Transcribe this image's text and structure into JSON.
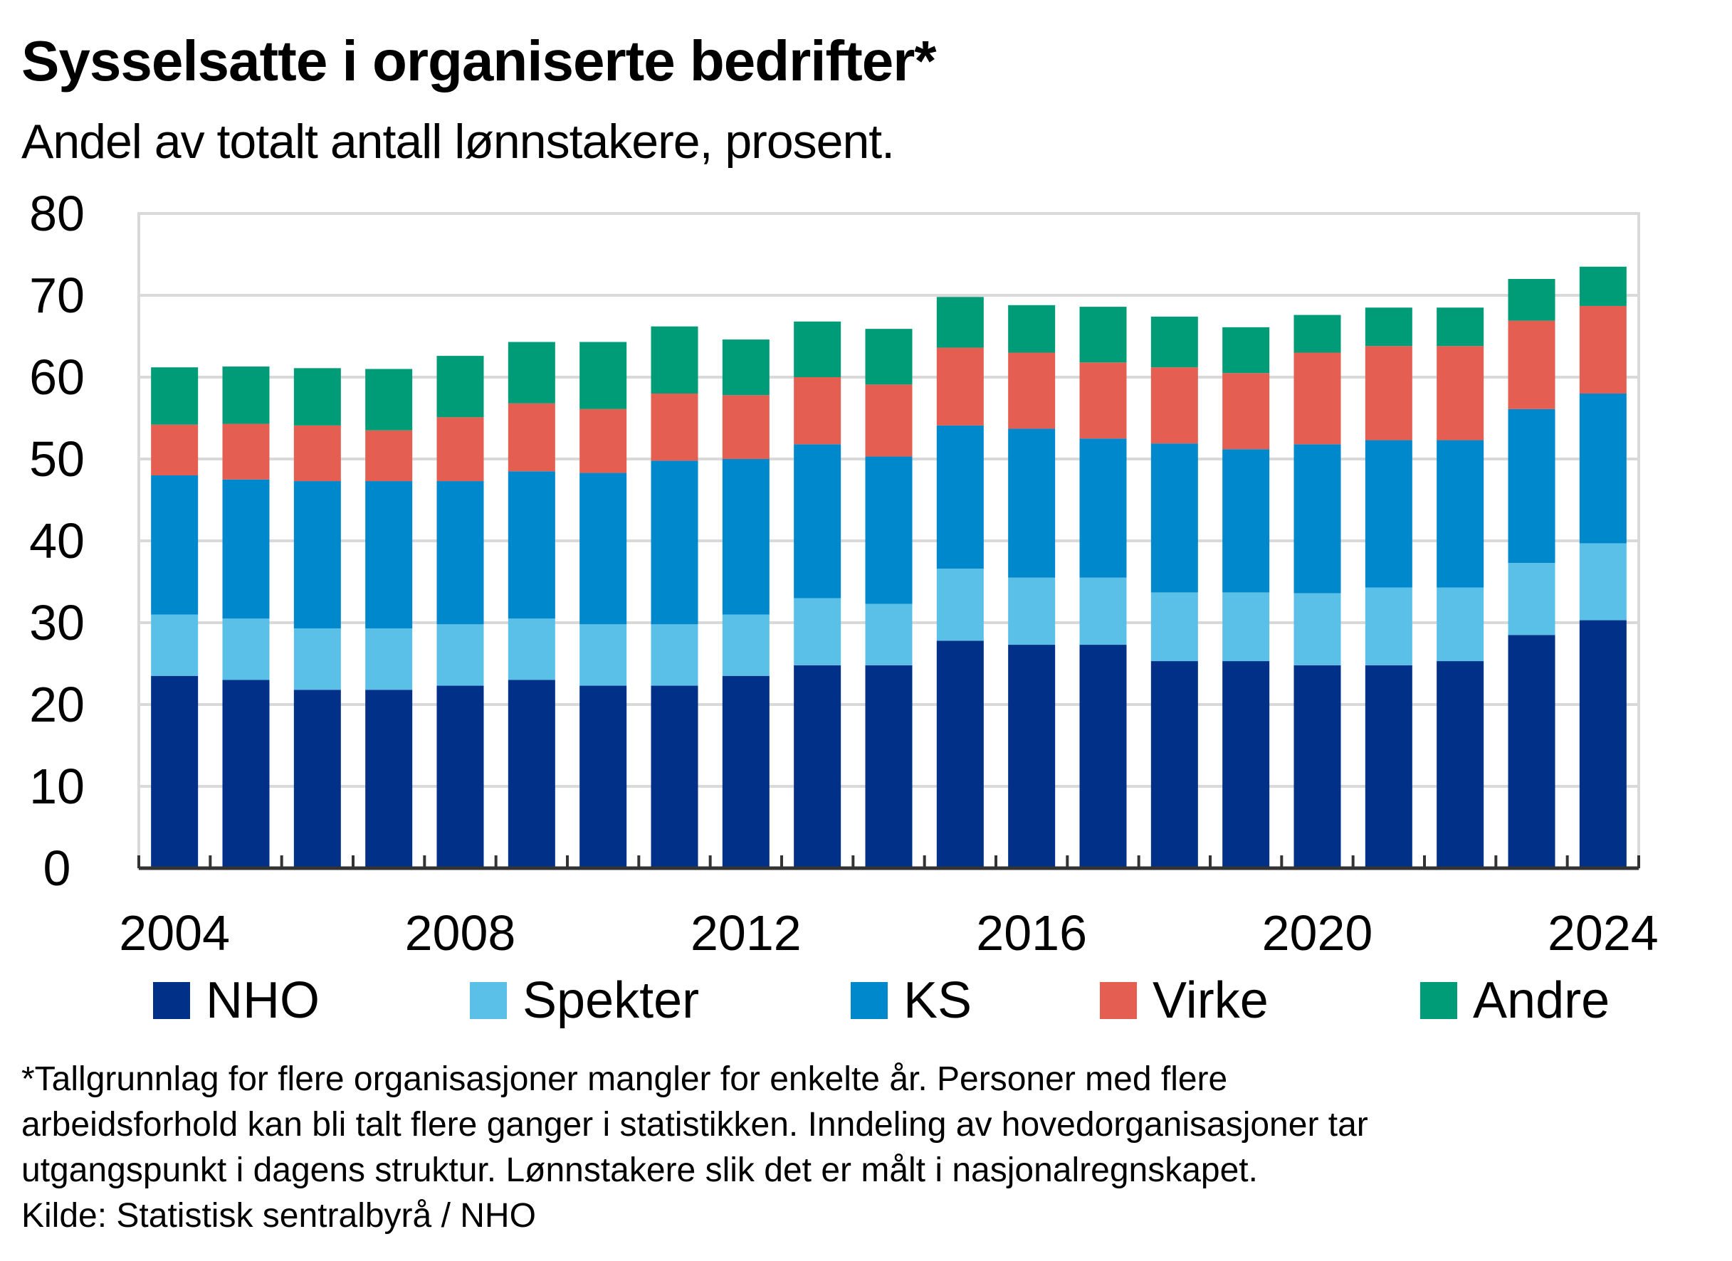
{
  "title": "Sysselsatte  i organiserte  bedrifter*",
  "subtitle": "Andel av totalt antall lønnstakere, prosent.",
  "footnote_lines": [
    "*Tallgrunnlag for flere organisasjoner mangler for enkelte år. Personer med flere",
    "arbeidsforhold kan bli talt flere ganger i statistikken. Inndeling av hovedorganisasjoner tar",
    "utgangspunkt i dagens struktur. Lønnstakere slik det er målt i nasjonalregnskapet.",
    "Kilde: Statistisk sentralbyrå / NHO"
  ],
  "chart_data": {
    "type": "bar",
    "stacked": true,
    "categories": [
      "2004",
      "2005",
      "2006",
      "2007",
      "2008",
      "2009",
      "2010",
      "2011",
      "2012",
      "2013",
      "2014",
      "2015",
      "2016",
      "2017",
      "2018",
      "2019",
      "2020",
      "2021",
      "2022",
      "2023",
      "2024"
    ],
    "x_tick_labels": [
      "2004",
      "2008",
      "2012",
      "2016",
      "2020",
      "2024"
    ],
    "y_ticks": [
      0,
      10,
      20,
      30,
      40,
      50,
      60,
      70,
      80
    ],
    "ylim": [
      0,
      80
    ],
    "grid": true,
    "legend_position": "bottom",
    "series": [
      {
        "name": "NHO",
        "color": "#003087",
        "values": [
          23.5,
          23.0,
          21.8,
          21.8,
          22.3,
          23.0,
          22.3,
          22.3,
          23.5,
          24.8,
          24.8,
          27.8,
          27.3,
          27.3,
          25.3,
          25.3,
          24.8,
          24.8,
          25.3,
          28.5,
          30.3
        ]
      },
      {
        "name": "Spekter",
        "color": "#5bc0e8",
        "values": [
          7.5,
          7.5,
          7.5,
          7.5,
          7.5,
          7.5,
          7.5,
          7.5,
          7.5,
          8.2,
          7.5,
          8.8,
          8.2,
          8.2,
          8.4,
          8.4,
          8.8,
          9.5,
          9.0,
          8.8,
          9.4
        ]
      },
      {
        "name": "KS",
        "color": "#0088cc",
        "values": [
          17.0,
          17.0,
          18.0,
          18.0,
          17.5,
          18.0,
          18.5,
          20.0,
          19.0,
          18.8,
          18.0,
          17.5,
          18.2,
          17.0,
          18.2,
          17.5,
          18.2,
          18.0,
          18.0,
          18.8,
          18.3
        ]
      },
      {
        "name": "Virke",
        "color": "#e55e52",
        "values": [
          6.2,
          6.8,
          6.8,
          6.2,
          7.8,
          8.3,
          7.8,
          8.2,
          7.8,
          8.2,
          8.8,
          9.5,
          9.3,
          9.3,
          9.3,
          9.3,
          11.2,
          11.5,
          11.5,
          10.8,
          10.7
        ]
      },
      {
        "name": "Andre",
        "color": "#009b77",
        "values": [
          7.0,
          7.0,
          7.0,
          7.5,
          7.5,
          7.5,
          8.2,
          8.2,
          6.8,
          6.8,
          6.8,
          6.2,
          5.8,
          6.8,
          6.2,
          5.6,
          4.6,
          4.7,
          4.7,
          5.1,
          4.8
        ]
      }
    ]
  }
}
